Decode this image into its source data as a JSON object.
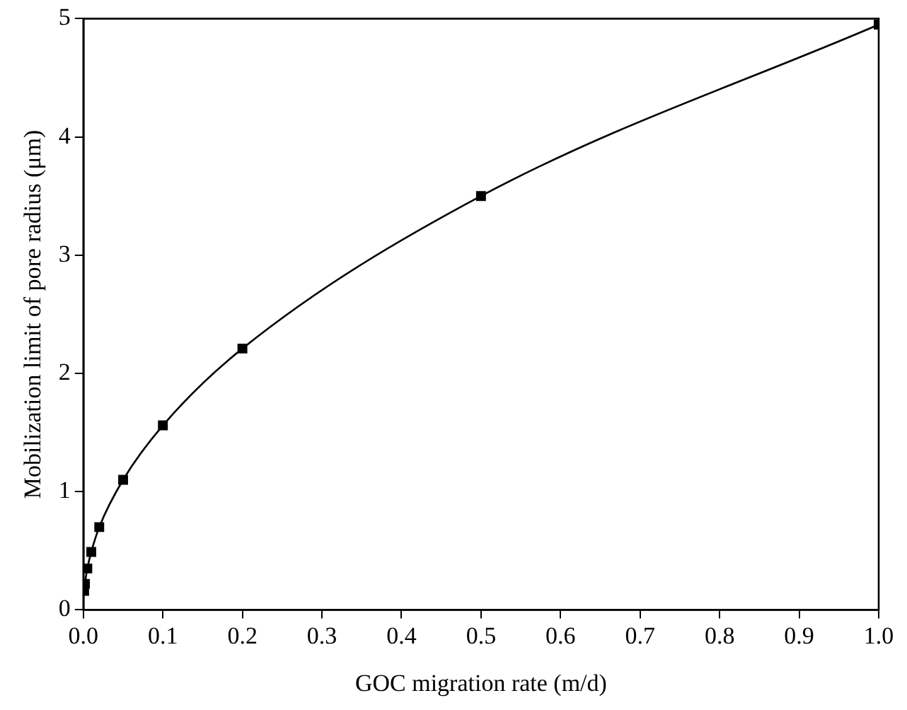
{
  "chart_data": {
    "type": "line",
    "xlabel": "GOC migration rate (m/d)",
    "ylabel": "Mobilization limit of pore radius (μm)",
    "x": [
      0.001,
      0.002,
      0.005,
      0.01,
      0.02,
      0.05,
      0.1,
      0.2,
      0.5,
      1.0
    ],
    "series": [
      {
        "color": "#000000",
        "values": [
          0.16,
          0.22,
          0.35,
          0.49,
          0.7,
          1.1,
          1.56,
          2.21,
          3.5,
          4.95
        ]
      }
    ],
    "xlim": [
      0,
      1.0
    ],
    "xticks": [
      {
        "value": 0,
        "label": "0.0"
      },
      0.1,
      0.2,
      0.3,
      0.4,
      0.5,
      0.6,
      0.7,
      0.8,
      0.9,
      {
        "value": 1,
        "label": "1.0"
      }
    ],
    "ylim": [
      0,
      5
    ],
    "yticks": [
      0,
      1,
      2,
      3,
      4,
      5
    ],
    "grid": false,
    "legend": false,
    "marker": "square",
    "line_style": "solid"
  }
}
